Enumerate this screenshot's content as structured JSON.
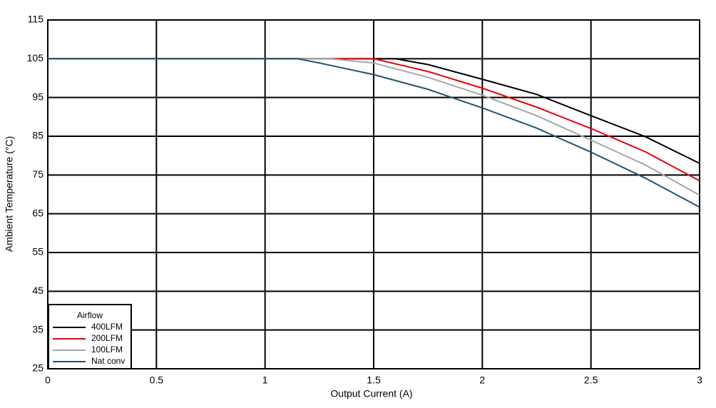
{
  "chart_data": {
    "type": "line",
    "x_label": "Output Current (A)",
    "y_label": "Ambient Temperature (°C)",
    "legend_title": "Airflow",
    "legend_position": "lower-left",
    "grid": true,
    "xlim": [
      0,
      3
    ],
    "xticks": [
      0,
      0.5,
      1,
      1.5,
      2,
      2.5,
      3
    ],
    "ylim": [
      25,
      115
    ],
    "yticks": [
      25,
      35,
      45,
      55,
      65,
      75,
      85,
      95,
      105,
      115
    ],
    "series": [
      {
        "name": "400LFM",
        "color": "#000000",
        "x": [
          0,
          1.6,
          1.75,
          2,
          2.25,
          2.5,
          2.75,
          3
        ],
        "values": [
          105,
          105,
          103.5,
          99.7,
          95.8,
          90.3,
          84.9,
          78
        ]
      },
      {
        "name": "200LFM",
        "color": "#e8000b",
        "x": [
          0,
          1.5,
          1.75,
          2,
          2.25,
          2.5,
          2.75,
          3
        ],
        "values": [
          105,
          105,
          101.7,
          97.4,
          92.5,
          87,
          81,
          73.5
        ]
      },
      {
        "name": "100LFM",
        "color": "#a6a6a6",
        "x": [
          0,
          1.3,
          1.5,
          1.75,
          2,
          2.25,
          2.5,
          2.75,
          3
        ],
        "values": [
          105,
          105,
          103.9,
          100.2,
          95.6,
          90.3,
          84,
          77.6,
          69.8
        ]
      },
      {
        "name": "Nat conv",
        "color": "#1f5473",
        "x": [
          0,
          1.15,
          1.25,
          1.5,
          1.75,
          2,
          2.25,
          2.5,
          2.75,
          3
        ],
        "values": [
          105,
          105,
          103.9,
          100.9,
          97.1,
          92.3,
          87.1,
          80.9,
          74.2,
          66.7
        ]
      }
    ]
  }
}
